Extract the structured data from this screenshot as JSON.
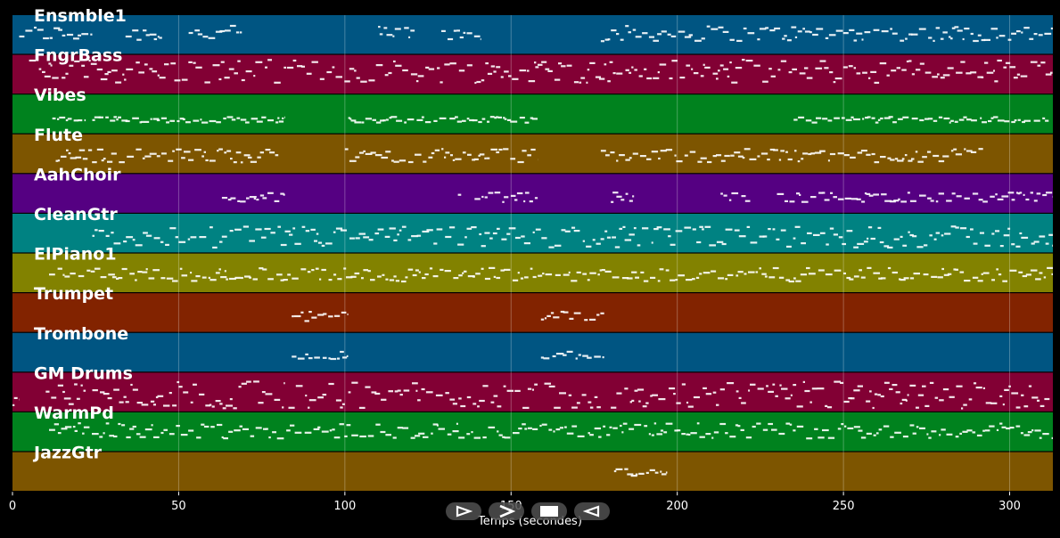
{
  "chart_data": {
    "type": "piano-roll",
    "title": "",
    "xlabel": "Temps (secondes)",
    "ylabel": "",
    "xlim": [
      0,
      313
    ],
    "xticks": [
      0,
      50,
      100,
      150,
      200,
      250,
      300
    ],
    "grid": true,
    "tracks": [
      {
        "name": "Ensmble1",
        "color": "#005582",
        "segments": [
          [
            2,
            24
          ],
          [
            34,
            45
          ],
          [
            53,
            69
          ],
          [
            110,
            121
          ],
          [
            129,
            141
          ],
          [
            177,
            313
          ]
        ],
        "pitch": [
          0.35,
          0.75
        ]
      },
      {
        "name": "FngrBass",
        "color": "#820034",
        "segments": [
          [
            5,
            313
          ]
        ],
        "pitch": [
          0.3,
          0.9
        ]
      },
      {
        "name": "Vibes",
        "color": "#00821e",
        "segments": [
          [
            12,
            22
          ],
          [
            24,
            82
          ],
          [
            101,
            158
          ],
          [
            235,
            312
          ]
        ],
        "pitch": [
          0.3,
          0.45
        ]
      },
      {
        "name": "Flute",
        "color": "#7d5500",
        "segments": [
          [
            13,
            80
          ],
          [
            100,
            158
          ],
          [
            177,
            292
          ]
        ],
        "pitch": [
          0.3,
          0.65
        ]
      },
      {
        "name": "AahChoir",
        "color": "#550082",
        "segments": [
          [
            63,
            82
          ],
          [
            134,
            135
          ],
          [
            139,
            158
          ],
          [
            180,
            187
          ],
          [
            213,
            222
          ],
          [
            230,
            313
          ]
        ],
        "pitch": [
          0.3,
          0.55
        ]
      },
      {
        "name": "CleanGtr",
        "color": "#008282",
        "segments": [
          [
            24,
            313
          ]
        ],
        "pitch": [
          0.15,
          0.7
        ]
      },
      {
        "name": "ElPiano1",
        "color": "#828200",
        "segments": [
          [
            11,
            313
          ]
        ],
        "pitch": [
          0.3,
          0.65
        ]
      },
      {
        "name": "Trumpet",
        "color": "#822300",
        "segments": [
          [
            84,
            101
          ],
          [
            159,
            178
          ]
        ],
        "pitch": [
          0.3,
          0.55
        ]
      },
      {
        "name": "Trombone",
        "color": "#005582",
        "segments": [
          [
            84,
            101
          ],
          [
            159,
            178
          ]
        ],
        "pitch": [
          0.35,
          0.55
        ]
      },
      {
        "name": "GM Drums",
        "color": "#820034",
        "segments": [
          [
            0,
            2
          ],
          [
            10,
            22
          ],
          [
            24,
            82
          ],
          [
            83,
            100
          ],
          [
            101,
            158
          ],
          [
            160,
            177
          ],
          [
            180,
            189
          ],
          [
            188,
            312
          ]
        ],
        "pitch": [
          0.1,
          0.8
        ]
      },
      {
        "name": "WarmPd",
        "color": "#00821e",
        "segments": [
          [
            11,
            313
          ]
        ],
        "pitch": [
          0.35,
          0.75
        ]
      },
      {
        "name": "JazzGtr",
        "color": "#7d5500",
        "segments": [
          [
            181,
            197
          ]
        ],
        "pitch": [
          0.4,
          0.6
        ]
      }
    ]
  },
  "controls": [
    {
      "name": "play-forward-button",
      "icon": "play-outline-icon"
    },
    {
      "name": "play-fast-button",
      "icon": "chevron-right-icon"
    },
    {
      "name": "stop-button",
      "icon": "stop-icon"
    },
    {
      "name": "play-reverse-button",
      "icon": "play-reverse-outline-icon"
    }
  ]
}
